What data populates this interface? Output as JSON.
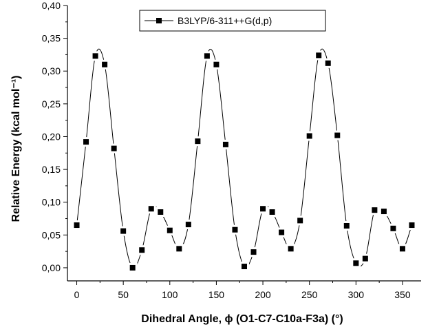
{
  "chart_data": {
    "type": "scatter",
    "title": "",
    "xlabel": "Dihedral Angle, ϕ (O1-C7-C10a-F3a) (°)",
    "ylabel": "Relative Energy (kcal mol⁻¹)",
    "xlim": [
      -10,
      370
    ],
    "ylim": [
      -0.02,
      0.4
    ],
    "xticks": [
      0,
      50,
      100,
      150,
      200,
      250,
      300,
      350
    ],
    "yticks": [
      0.0,
      0.05,
      0.1,
      0.15,
      0.2,
      0.25,
      0.3,
      0.35,
      0.4
    ],
    "xtick_labels": [
      "0",
      "50",
      "100",
      "150",
      "200",
      "250",
      "300",
      "350"
    ],
    "ytick_labels": [
      "0,00",
      "0,05",
      "0,10",
      "0,15",
      "0,20",
      "0,25",
      "0,30",
      "0,35",
      "0,40"
    ],
    "grid": false,
    "legend_position": "top-center",
    "series": [
      {
        "name": "B3LYP/6-311++G(d,p)",
        "marker": "square",
        "color": "#000000",
        "x": [
          0,
          10,
          20,
          30,
          40,
          50,
          60,
          70,
          80,
          90,
          100,
          110,
          120,
          130,
          140,
          150,
          160,
          170,
          180,
          190,
          200,
          210,
          220,
          230,
          240,
          250,
          260,
          270,
          280,
          290,
          300,
          310,
          320,
          330,
          340,
          350,
          360
        ],
        "y": [
          0.065,
          0.192,
          0.323,
          0.31,
          0.182,
          0.056,
          0.0,
          0.027,
          0.09,
          0.085,
          0.057,
          0.029,
          0.066,
          0.193,
          0.323,
          0.31,
          0.188,
          0.058,
          0.002,
          0.024,
          0.09,
          0.085,
          0.054,
          0.029,
          0.072,
          0.201,
          0.324,
          0.312,
          0.202,
          0.064,
          0.007,
          0.014,
          0.088,
          0.086,
          0.06,
          0.029,
          0.065
        ]
      }
    ]
  }
}
